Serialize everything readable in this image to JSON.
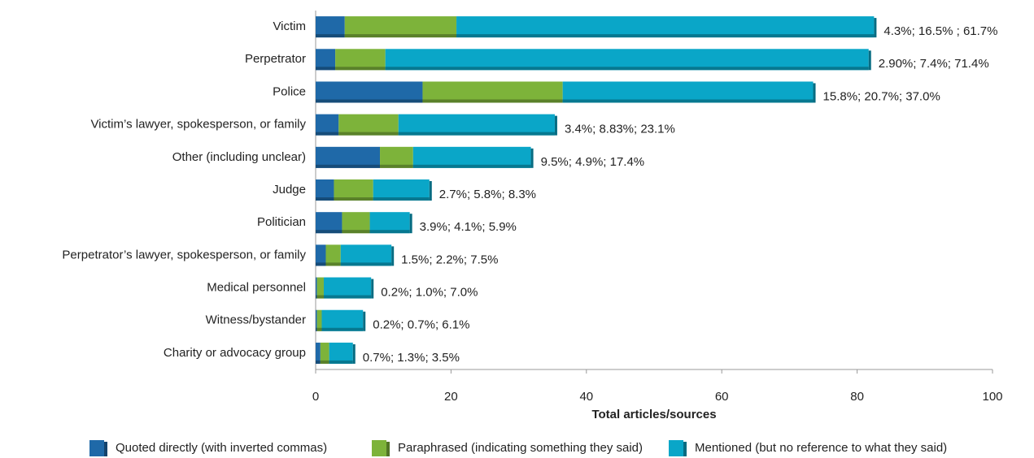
{
  "chart_data": {
    "type": "stacked-bar-horizontal",
    "xlabel": "Total articles/sources",
    "categories": [
      "Victim",
      "Perpetrator",
      "Police",
      "Victim’s lawyer, spokesperson, or family",
      "Other (including unclear)",
      "Judge",
      "Politician",
      "Perpetrator’s lawyer, spokesperson, or family",
      "Medical personnel",
      "Witness/bystander",
      "Charity or advocacy group"
    ],
    "series": [
      {
        "name": "Quoted directly (with inverted commas)",
        "color": "#1f69a8",
        "values": [
          4.3,
          2.9,
          15.8,
          3.4,
          9.5,
          2.7,
          3.9,
          1.5,
          0.2,
          0.2,
          0.7
        ]
      },
      {
        "name": "Paraphrased (indicating something they said)",
        "color": "#7db33a",
        "values": [
          16.5,
          7.4,
          20.7,
          8.83,
          4.9,
          5.8,
          4.1,
          2.2,
          1.0,
          0.7,
          1.3
        ]
      },
      {
        "name": "Mentioned (but no reference to what they said)",
        "color": "#0aa6c8",
        "values": [
          61.7,
          71.4,
          37.0,
          23.1,
          17.4,
          8.3,
          5.9,
          7.5,
          7.0,
          6.1,
          3.5
        ]
      }
    ],
    "value_labels": [
      "4.3%; 16.5% ; 61.7%",
      "2.90%; 7.4%; 71.4%",
      "15.8%; 20.7%; 37.0%",
      "3.4%; 8.83%; 23.1%",
      "9.5%; 4.9%; 17.4%",
      "2.7%; 5.8%; 8.3%",
      "3.9%; 4.1%; 5.9%",
      "1.5%; 2.2%; 7.5%",
      "0.2%; 1.0%; 7.0%",
      "0.2%; 0.7%; 6.1%",
      "0.7%; 1.3%; 3.5%"
    ],
    "xlim": [
      0,
      100
    ],
    "xticks": [
      0,
      20,
      40,
      60,
      80,
      100
    ],
    "legend": "bottom"
  }
}
